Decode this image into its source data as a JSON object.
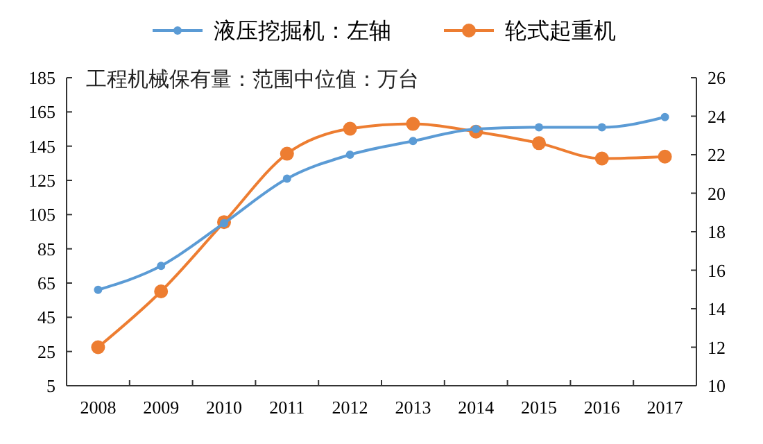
{
  "chart_data": {
    "type": "line",
    "categories": [
      "2008",
      "2009",
      "2010",
      "2011",
      "2012",
      "2013",
      "2014",
      "2015",
      "2016",
      "2017"
    ],
    "series": [
      {
        "name": "液压挖掘机：左轴",
        "color": "#5b9bd5",
        "values": [
          61,
          75,
          100,
          126,
          140,
          148,
          155,
          156,
          156,
          162
        ]
      },
      {
        "name": "轮式起重机",
        "color": "#ed7d31",
        "axis": "y2",
        "values": [
          12.0,
          14.9,
          18.5,
          22.05,
          23.35,
          23.6,
          23.2,
          22.6,
          21.8,
          21.9
        ]
      }
    ],
    "ylim": [
      5,
      185
    ],
    "yticks": [
      5,
      25,
      45,
      65,
      85,
      105,
      125,
      145,
      165,
      185
    ],
    "y2lim": [
      10,
      26
    ],
    "y2ticks": [
      10,
      12,
      14,
      16,
      18,
      20,
      22,
      24,
      26
    ],
    "annotations": [
      "工程机械保有量：范围中位值：万台"
    ],
    "legend": "top",
    "marker": "circle",
    "line_style": "solid",
    "grid": false
  }
}
